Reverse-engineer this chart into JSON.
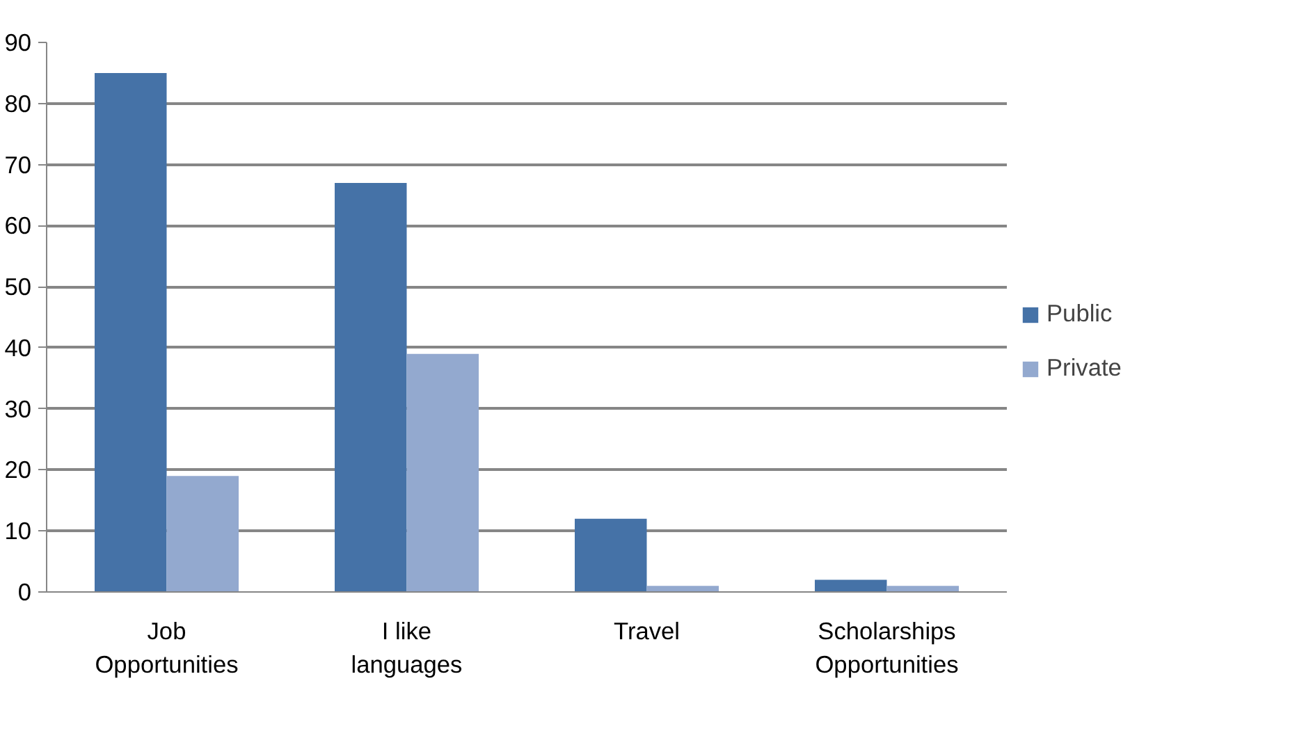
{
  "chart_data": {
    "type": "bar",
    "categories": [
      "Job Opportunities",
      "I like languages",
      "Travel",
      "Scholarships Opportunities"
    ],
    "series": [
      {
        "name": "Public",
        "color": "#4572a7",
        "values": [
          85,
          67,
          12,
          2
        ]
      },
      {
        "name": "Private",
        "color": "#93a9cf",
        "values": [
          19,
          39,
          1,
          1
        ]
      }
    ],
    "ylim": [
      0,
      90
    ],
    "yticks": [
      0,
      10,
      20,
      30,
      40,
      50,
      60,
      70,
      80,
      90
    ],
    "grid": "y",
    "legend": "right"
  }
}
